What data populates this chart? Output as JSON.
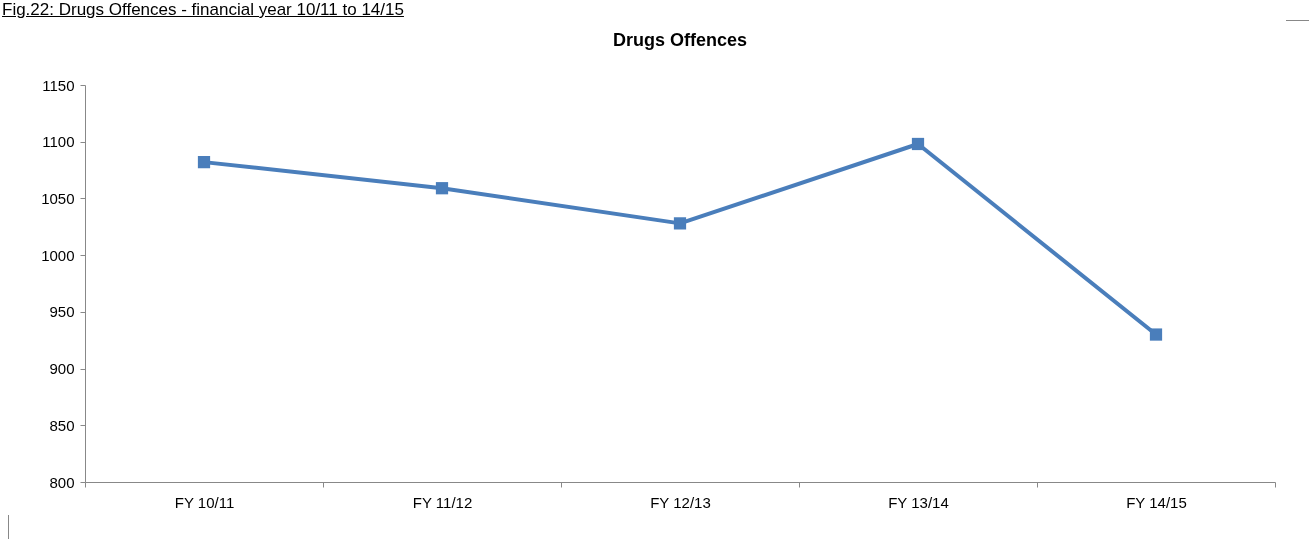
{
  "chart_data": {
    "type": "line",
    "title": "Drugs Offences",
    "annotations": [
      "Fig.22: Drugs Offences - financial year 10/11 to 14/15"
    ],
    "categories": [
      "FY 10/11",
      "FY 11/12",
      "FY 12/13",
      "FY 13/14",
      "FY 14/15"
    ],
    "series": [
      {
        "color": "#4a7ebb",
        "values": [
          1082,
          1059,
          1028,
          1098,
          930
        ]
      }
    ],
    "ylim": [
      800,
      1150
    ],
    "yticks": [
      800,
      850,
      900,
      950,
      1000,
      1050,
      1100,
      1150
    ],
    "grid": false,
    "legend": false,
    "marker": "square",
    "line_style": "solid"
  }
}
